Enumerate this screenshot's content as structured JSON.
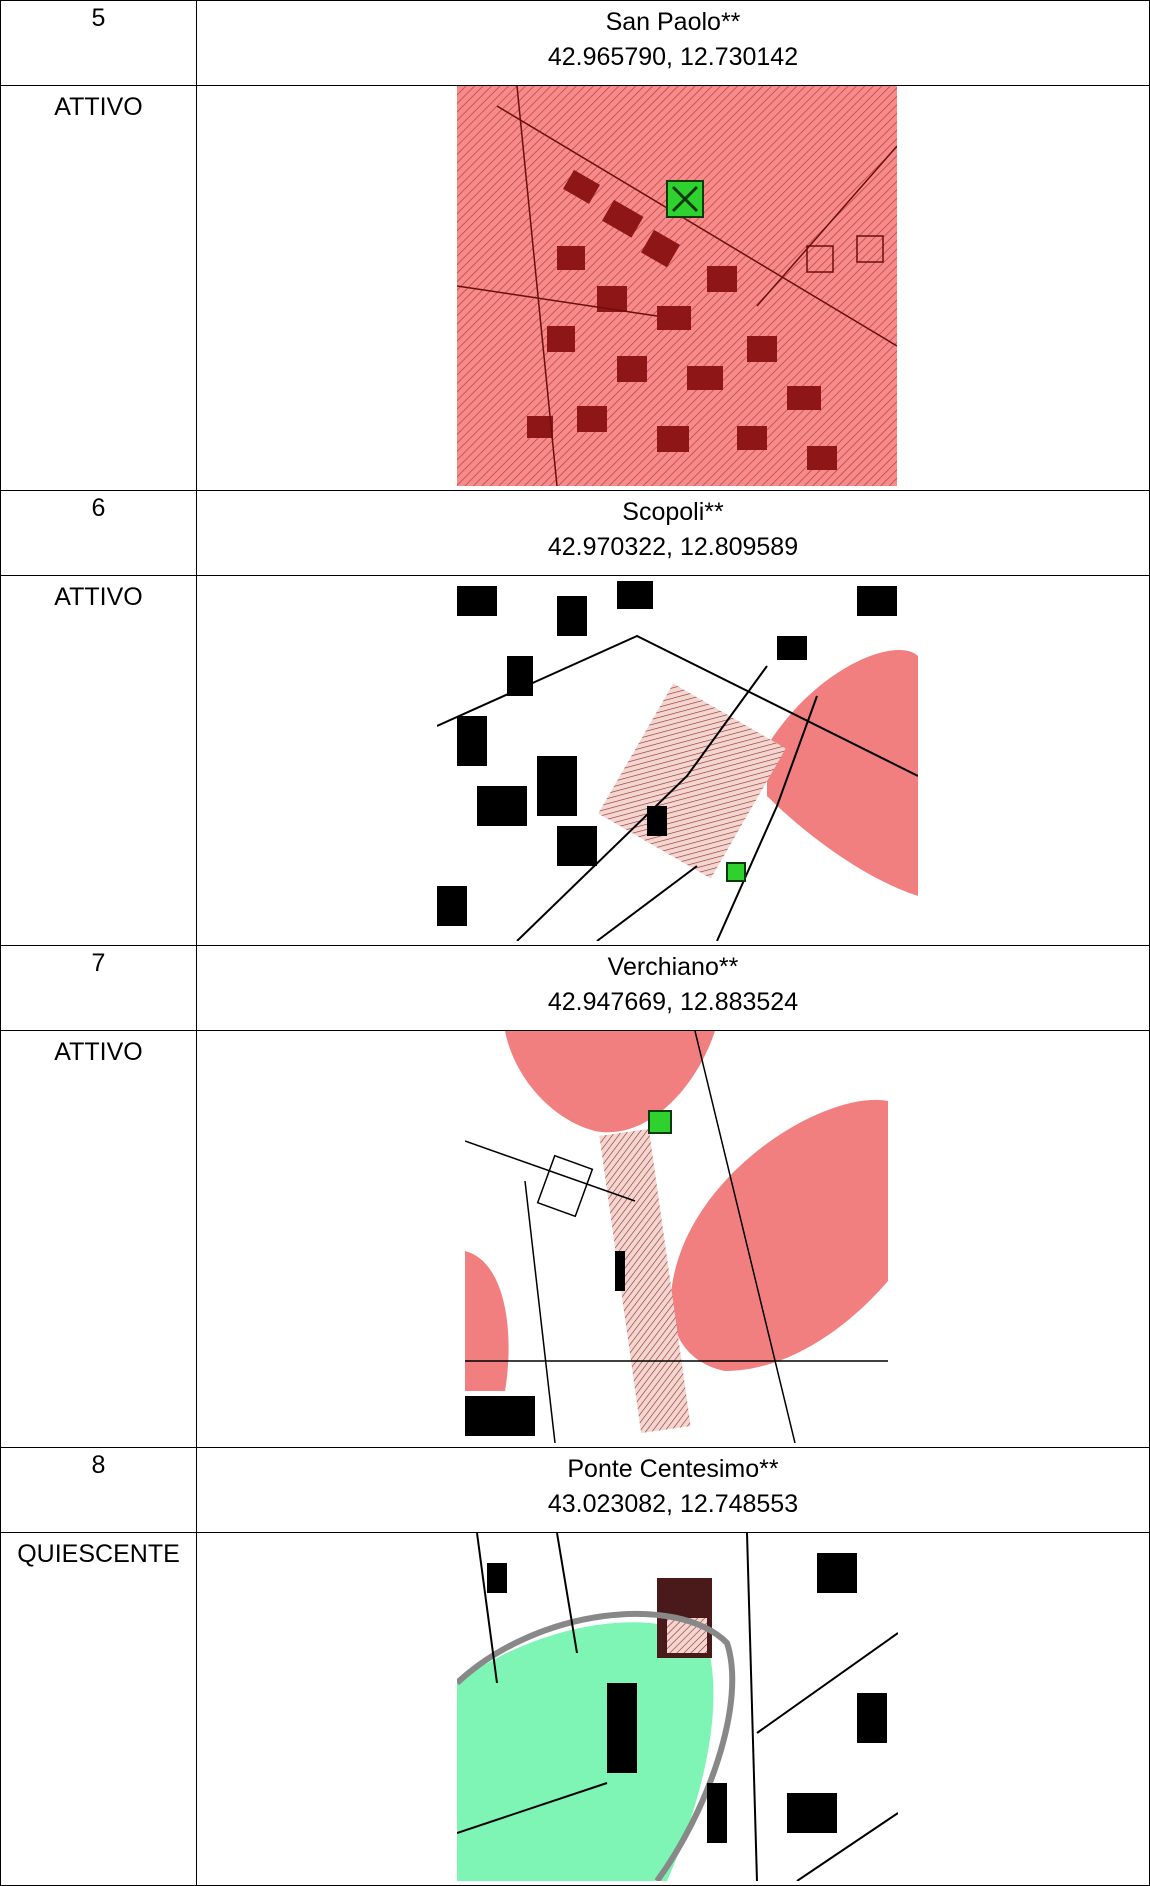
{
  "table": {
    "rows": [
      {
        "number": "5",
        "name": "San Paolo**",
        "coords": "42.965790, 12.730142",
        "status": "ATTIVO"
      },
      {
        "number": "6",
        "name": "Scopoli**",
        "coords": "42.970322, 12.809589",
        "status": "ATTIVO"
      },
      {
        "number": "7",
        "name": "Verchiano**",
        "coords": "42.947669, 12.883524",
        "status": "ATTIVO"
      },
      {
        "number": "8",
        "name": "Ponte Centesimo**",
        "coords": "43.023082, 12.748553",
        "status": "QUIESCENTE"
      }
    ]
  }
}
